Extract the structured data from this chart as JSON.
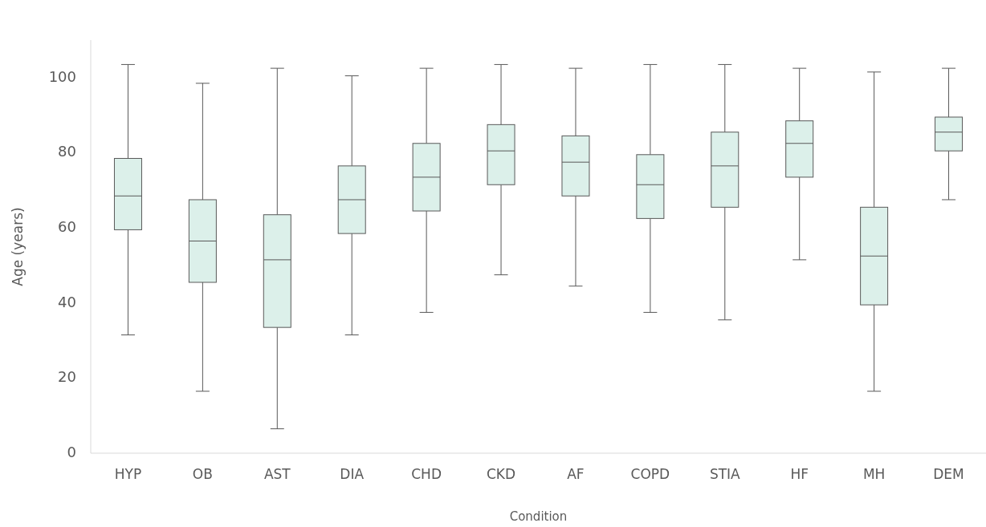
{
  "chart_data": {
    "type": "box",
    "xlabel": "Condition",
    "ylabel": "Age (years)",
    "ylim": [
      0,
      110
    ],
    "yticks": [
      0,
      20,
      40,
      60,
      80,
      100
    ],
    "grid": false,
    "categories": [
      "HYP",
      "OB",
      "AST",
      "DIA",
      "CHD",
      "CKD",
      "AF",
      "COPD",
      "STIA",
      "HF",
      "MH",
      "DEM"
    ],
    "series": [
      {
        "color": "#dcf0ea",
        "boxes": [
          {
            "low": 31.5,
            "q1": 59.5,
            "median": 68.5,
            "q3": 78.5,
            "high": 103.5
          },
          {
            "low": 16.5,
            "q1": 45.5,
            "median": 56.5,
            "q3": 67.5,
            "high": 98.5
          },
          {
            "low": 6.5,
            "q1": 33.5,
            "median": 51.5,
            "q3": 63.5,
            "high": 102.5
          },
          {
            "low": 31.5,
            "q1": 58.5,
            "median": 67.5,
            "q3": 76.5,
            "high": 100.5
          },
          {
            "low": 37.5,
            "q1": 64.5,
            "median": 73.5,
            "q3": 82.5,
            "high": 102.5
          },
          {
            "low": 47.5,
            "q1": 71.5,
            "median": 80.5,
            "q3": 87.5,
            "high": 103.5
          },
          {
            "low": 44.5,
            "q1": 68.5,
            "median": 77.5,
            "q3": 84.5,
            "high": 102.5
          },
          {
            "low": 37.5,
            "q1": 62.5,
            "median": 71.5,
            "q3": 79.5,
            "high": 103.5
          },
          {
            "low": 35.5,
            "q1": 65.5,
            "median": 76.5,
            "q3": 85.5,
            "high": 103.5
          },
          {
            "low": 51.5,
            "q1": 73.5,
            "median": 82.5,
            "q3": 88.5,
            "high": 102.5
          },
          {
            "low": 16.5,
            "q1": 39.5,
            "median": 52.5,
            "q3": 65.5,
            "high": 101.5
          },
          {
            "low": 67.5,
            "q1": 80.5,
            "median": 85.5,
            "q3": 89.5,
            "high": 102.5
          }
        ]
      }
    ]
  }
}
